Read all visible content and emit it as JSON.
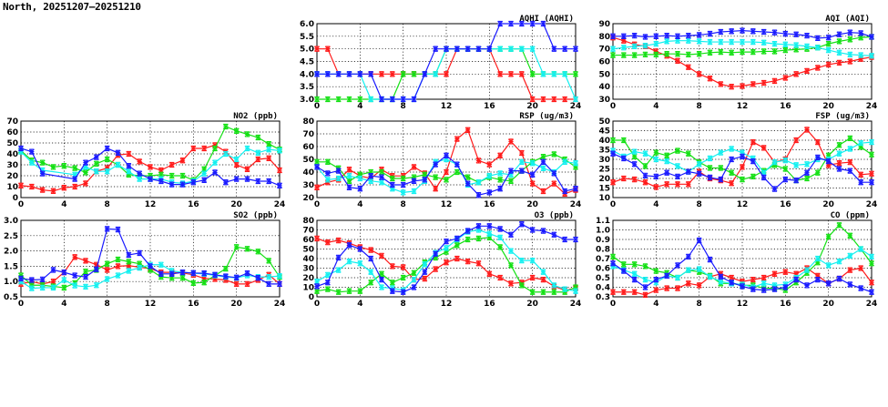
{
  "title": "North, 20251207–20251210",
  "colors": {
    "red": "#ff1a1a",
    "green": "#14e014",
    "cyan": "#14f0f0",
    "blue": "#1a1aff"
  },
  "chart_data": [
    {
      "id": "aqhi",
      "type": "line",
      "title": "AQHI (AQHI)",
      "xlim": [
        0,
        24
      ],
      "xticks": [
        0,
        4,
        8,
        12,
        16,
        20,
        24
      ],
      "ylim": [
        3,
        6
      ],
      "yticks": [
        3.0,
        3.5,
        4.0,
        4.5,
        5.0,
        5.5,
        6.0
      ],
      "decimals": 1,
      "grid": true,
      "series": [
        {
          "name": "red",
          "values": [
            5,
            5,
            4,
            4,
            4,
            4,
            4,
            4,
            4,
            4,
            4,
            4,
            4,
            5,
            5,
            5,
            5,
            4,
            4,
            4,
            3,
            3,
            3,
            3,
            3
          ]
        },
        {
          "name": "green",
          "values": [
            3,
            3,
            3,
            3,
            3,
            3,
            3,
            3,
            4,
            4,
            4,
            4,
            5,
            5,
            5,
            5,
            5,
            5,
            5,
            5,
            4,
            4,
            4,
            4,
            4
          ]
        },
        {
          "name": "cyan",
          "values": [
            4,
            4,
            4,
            4,
            4,
            3,
            3,
            3,
            3,
            3,
            4,
            4,
            5,
            5,
            5,
            5,
            5,
            5,
            5,
            5,
            5,
            4,
            4,
            4,
            3
          ]
        },
        {
          "name": "blue",
          "values": [
            4,
            4,
            4,
            4,
            4,
            4,
            3,
            3,
            3,
            3,
            4,
            5,
            5,
            5,
            5,
            5,
            5,
            6,
            6,
            6,
            6,
            6,
            5,
            5,
            5
          ]
        }
      ]
    },
    {
      "id": "aqi",
      "type": "line",
      "title": "AQI (AQI)",
      "xlim": [
        0,
        24
      ],
      "xticks": [
        0,
        4,
        8,
        12,
        16,
        20,
        24
      ],
      "ylim": [
        30,
        90
      ],
      "yticks": [
        30,
        40,
        50,
        60,
        70,
        80,
        90
      ],
      "decimals": 0,
      "grid": true,
      "series": [
        {
          "name": "red",
          "values": [
            79,
            76.5,
            73.5,
            72,
            68,
            64.5,
            60.5,
            55.5,
            50,
            46.5,
            42,
            40,
            40.5,
            42,
            43,
            44.5,
            47,
            50,
            52.5,
            55,
            57.5,
            59,
            60,
            62,
            63.5
          ]
        },
        {
          "name": "green",
          "values": [
            65,
            65,
            65,
            65.5,
            65.5,
            66,
            66,
            65.5,
            66,
            67,
            67.5,
            67,
            67.5,
            67.5,
            68,
            68,
            69,
            69.5,
            70,
            71,
            74,
            76,
            77.5,
            79,
            79.5
          ]
        },
        {
          "name": "cyan",
          "values": [
            70,
            71,
            72,
            72.5,
            74,
            76,
            76.5,
            76.5,
            76,
            75.5,
            75.5,
            75.5,
            75.5,
            75.5,
            75,
            74,
            73.5,
            73,
            72,
            71,
            69,
            67,
            65.5,
            65,
            64.5
          ]
        },
        {
          "name": "blue",
          "values": [
            80,
            80,
            80.5,
            79.5,
            80,
            80.5,
            80,
            80.5,
            81,
            82,
            83.5,
            84,
            84.5,
            84,
            83.5,
            83,
            82,
            81.5,
            80.5,
            78.5,
            79,
            81.5,
            83,
            82.5,
            79.5
          ]
        }
      ]
    },
    {
      "id": "no2",
      "type": "line",
      "title": "NO2 (ppb)",
      "xlim": [
        0,
        24
      ],
      "xticks": [
        0,
        4,
        8,
        12,
        16,
        20,
        24
      ],
      "ylim": [
        0,
        70
      ],
      "yticks": [
        0,
        10,
        20,
        30,
        40,
        50,
        60,
        70
      ],
      "decimals": 0,
      "grid": true,
      "series": [
        {
          "name": "red",
          "values": [
            11,
            10,
            7,
            6,
            9,
            10,
            13,
            24,
            27,
            39,
            40,
            33,
            28,
            25,
            30,
            34,
            45,
            45,
            48,
            42,
            30,
            26,
            35,
            36,
            25
          ]
        },
        {
          "name": "green",
          "values": [
            43,
            34,
            32,
            28,
            29,
            27,
            23,
            31,
            35,
            30,
            21,
            20,
            20,
            21,
            20,
            20,
            16,
            26,
            45,
            65,
            61,
            58,
            55,
            49,
            44
          ]
        },
        {
          "name": "cyan",
          "values": [
            42,
            32,
            25,
            null,
            null,
            21,
            28,
            24,
            24,
            30,
            24,
            17,
            17,
            17,
            14,
            13,
            15,
            22,
            32,
            40,
            35,
            45,
            41,
            44,
            43
          ]
        },
        {
          "name": "blue",
          "values": [
            45,
            42,
            22,
            null,
            null,
            17,
            32,
            37,
            45,
            41,
            29,
            22,
            17,
            15,
            12,
            12,
            14,
            16,
            23,
            14,
            17,
            17,
            15,
            15,
            11
          ]
        }
      ]
    },
    {
      "id": "rsp",
      "type": "line",
      "title": "RSP (ug/m3)",
      "xlim": [
        0,
        24
      ],
      "xticks": [
        0,
        4,
        8,
        12,
        16,
        20,
        24
      ],
      "ylim": [
        20,
        80
      ],
      "yticks": [
        20,
        30,
        40,
        50,
        60,
        70,
        80
      ],
      "decimals": 0,
      "grid": true,
      "series": [
        {
          "name": "red",
          "values": [
            28,
            32,
            34,
            42,
            37,
            35,
            42,
            37,
            37,
            44,
            39,
            27,
            40,
            66,
            73,
            49,
            46,
            53,
            64,
            55,
            31,
            25,
            31,
            23,
            26
          ]
        },
        {
          "name": "green",
          "values": [
            48,
            48,
            43,
            33,
            38,
            40,
            40,
            35,
            35,
            36,
            38,
            36,
            34,
            40,
            36,
            32,
            36,
            34,
            33,
            41,
            48,
            52,
            54,
            50,
            44
          ]
        },
        {
          "name": "cyan",
          "values": [
            44,
            34,
            35,
            37,
            35,
            33,
            32,
            27,
            24,
            25,
            33,
            48,
            50,
            46,
            30,
            32,
            37,
            39,
            38,
            48,
            47,
            43,
            40,
            48,
            47
          ]
        },
        {
          "name": "blue",
          "values": [
            44,
            39,
            41,
            28,
            27,
            37,
            36,
            30,
            30,
            33,
            34,
            46,
            53,
            46,
            31,
            22,
            24,
            27,
            41,
            41,
            38,
            48,
            39,
            25,
            27
          ]
        }
      ]
    },
    {
      "id": "fsp",
      "type": "line",
      "title": "FSP (ug/m3)",
      "xlim": [
        0,
        24
      ],
      "xticks": [
        0,
        4,
        8,
        12,
        16,
        20,
        24
      ],
      "ylim": [
        10,
        50
      ],
      "yticks": [
        10,
        15,
        20,
        25,
        30,
        35,
        40,
        45,
        50
      ],
      "decimals": 0,
      "grid": true,
      "series": [
        {
          "name": "red",
          "values": [
            18,
            20,
            19.5,
            18,
            15.5,
            17,
            17,
            17,
            23.5,
            20,
            19,
            17.5,
            26,
            39,
            36,
            28.5,
            30,
            40,
            45.5,
            39,
            27,
            28,
            28.5,
            22,
            22.5
          ]
        },
        {
          "name": "green",
          "values": [
            40,
            40,
            31.5,
            26.5,
            33.5,
            32,
            34.5,
            33,
            28.5,
            25.5,
            25.5,
            23,
            19.5,
            21,
            24,
            27,
            25,
            19,
            20,
            23,
            32,
            37.5,
            41,
            36.5,
            32.5
          ]
        },
        {
          "name": "cyan",
          "values": [
            34.5,
            31.5,
            34,
            33,
            30,
            29,
            26.5,
            23.5,
            27.5,
            30.5,
            33.5,
            35.5,
            33.5,
            30.5,
            23,
            28.5,
            29.5,
            27,
            27.5,
            30,
            30,
            33,
            35.5,
            38.5,
            39
          ]
        },
        {
          "name": "blue",
          "values": [
            33,
            30.5,
            27.5,
            21.5,
            21,
            23,
            21,
            23.5,
            22.5,
            20.5,
            19.5,
            30,
            31.5,
            29,
            20.5,
            14.5,
            19.5,
            19,
            23,
            31,
            29,
            25,
            24,
            18,
            18
          ]
        }
      ]
    },
    {
      "id": "so2",
      "type": "line",
      "title": "SO2 (ppb)",
      "xlim": [
        0,
        24
      ],
      "xticks": [
        0,
        4,
        8,
        12,
        16,
        20,
        24
      ],
      "ylim": [
        0.5,
        3.0
      ],
      "yticks": [
        0.5,
        1.0,
        1.5,
        2.0,
        2.5,
        3.0
      ],
      "decimals": 1,
      "grid": true,
      "series": [
        {
          "name": "red",
          "values": [
            0.92,
            1.0,
            0.92,
            1.0,
            1.3,
            1.8,
            1.68,
            1.55,
            1.38,
            1.5,
            1.52,
            1.47,
            1.42,
            1.3,
            1.3,
            1.28,
            1.22,
            1.1,
            1.08,
            1.05,
            0.92,
            0.92,
            1.05,
            1.22,
            0.92
          ]
        },
        {
          "name": "green",
          "values": [
            1.2,
            0.88,
            0.88,
            0.84,
            0.8,
            0.95,
            1.33,
            1.38,
            1.58,
            1.72,
            1.65,
            1.58,
            1.38,
            1.15,
            1.12,
            1.12,
            0.95,
            0.97,
            1.2,
            1.42,
            2.13,
            2.07,
            1.98,
            1.68,
            1.15
          ]
        },
        {
          "name": "cyan",
          "values": [
            1.0,
            0.78,
            0.8,
            0.8,
            1.05,
            0.87,
            0.83,
            0.88,
            1.08,
            1.2,
            1.35,
            1.45,
            1.55,
            1.55,
            1.35,
            1.3,
            1.27,
            1.25,
            1.2,
            1.15,
            1.12,
            1.2,
            1.15,
            1.15,
            1.18
          ]
        },
        {
          "name": "blue",
          "values": [
            1.1,
            1.05,
            1.07,
            1.38,
            1.3,
            1.2,
            1.15,
            1.4,
            2.72,
            2.7,
            1.87,
            1.93,
            1.5,
            1.25,
            1.25,
            1.3,
            1.28,
            1.27,
            1.22,
            1.17,
            1.13,
            1.27,
            1.12,
            0.92,
            0.92
          ]
        }
      ]
    },
    {
      "id": "o3",
      "type": "line",
      "title": "O3 (ppb)",
      "xlim": [
        0,
        24
      ],
      "xticks": [
        0,
        4,
        8,
        12,
        16,
        20,
        24
      ],
      "ylim": [
        0,
        80
      ],
      "yticks": [
        0,
        10,
        20,
        30,
        40,
        50,
        60,
        70,
        80
      ],
      "decimals": 0,
      "grid": true,
      "series": [
        {
          "name": "red",
          "values": [
            61,
            57,
            59,
            56,
            52,
            49,
            43,
            32,
            31,
            18,
            19,
            29,
            36,
            40,
            37,
            35,
            24,
            20,
            14,
            15,
            20,
            18,
            11,
            7,
            9
          ]
        },
        {
          "name": "green",
          "values": [
            6,
            8,
            5,
            6,
            6,
            15,
            24,
            15,
            20,
            25,
            36,
            41,
            47,
            54,
            60,
            61,
            62,
            52,
            33,
            12,
            5,
            5,
            5,
            5,
            10
          ]
        },
        {
          "name": "cyan",
          "values": [
            16,
            23,
            28,
            37,
            35,
            26,
            10,
            9,
            7,
            18,
            34,
            46,
            51,
            60,
            68,
            70,
            66,
            62,
            48,
            38,
            38,
            26,
            12,
            8,
            6
          ]
        },
        {
          "name": "blue",
          "values": [
            11,
            15,
            41,
            54,
            50,
            40,
            18,
            6,
            5,
            10,
            26,
            45,
            58,
            61,
            69,
            74,
            74,
            71,
            65,
            76,
            70,
            69,
            65,
            60,
            60
          ]
        }
      ]
    },
    {
      "id": "co",
      "type": "line",
      "title": "CO (ppm)",
      "xlim": [
        0,
        24
      ],
      "xticks": [
        0,
        4,
        8,
        12,
        16,
        20,
        24
      ],
      "ylim": [
        0.3,
        1.1
      ],
      "yticks": [
        0.3,
        0.4,
        0.5,
        0.6,
        0.7,
        0.8,
        0.9,
        1.0,
        1.1
      ],
      "decimals": 1,
      "grid": true,
      "series": [
        {
          "name": "red",
          "values": [
            0.35,
            0.35,
            0.35,
            0.32,
            0.37,
            0.39,
            0.39,
            0.44,
            0.42,
            0.51,
            0.54,
            0.5,
            0.46,
            0.48,
            0.5,
            0.54,
            0.56,
            0.54,
            0.6,
            0.52,
            0.44,
            0.49,
            0.58,
            0.6,
            0.45
          ]
        },
        {
          "name": "green",
          "values": [
            0.72,
            0.64,
            0.64,
            0.62,
            0.57,
            0.55,
            0.5,
            0.58,
            0.56,
            0.52,
            0.44,
            0.44,
            0.42,
            0.42,
            0.39,
            0.39,
            0.37,
            0.45,
            0.55,
            0.66,
            0.93,
            1.05,
            0.94,
            0.8,
            0.65
          ]
        },
        {
          "name": "cyan",
          "values": [
            0.62,
            0.58,
            0.54,
            0.48,
            0.45,
            0.52,
            0.5,
            0.58,
            0.59,
            0.51,
            0.46,
            0.44,
            0.43,
            0.4,
            0.44,
            0.42,
            0.43,
            0.5,
            0.58,
            0.7,
            0.63,
            0.67,
            0.73,
            0.8,
            0.72
          ]
        },
        {
          "name": "blue",
          "values": [
            0.65,
            0.57,
            0.48,
            0.4,
            0.48,
            0.52,
            0.63,
            0.72,
            0.89,
            0.69,
            0.51,
            0.45,
            0.41,
            0.38,
            0.37,
            0.38,
            0.4,
            0.48,
            0.42,
            0.48,
            0.44,
            0.49,
            0.43,
            0.39,
            0.35
          ]
        }
      ]
    }
  ]
}
